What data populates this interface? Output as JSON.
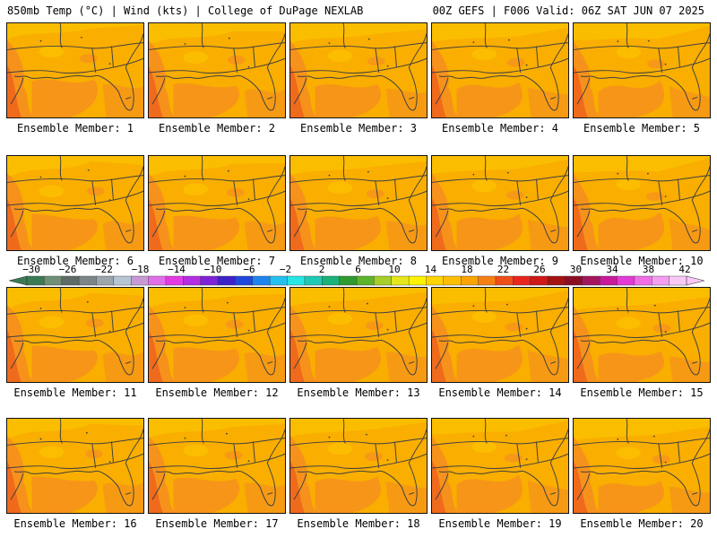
{
  "header": {
    "left_title": "850mb Temp (°C) | Wind (kts) | College of DuPage NEXLAB",
    "right_title": "00Z GEFS | F006 Valid: 06Z SAT JUN 07 2025"
  },
  "panels": [
    {
      "label": "Ensemble Member: 1"
    },
    {
      "label": "Ensemble Member: 2"
    },
    {
      "label": "Ensemble Member: 3"
    },
    {
      "label": "Ensemble Member: 4"
    },
    {
      "label": "Ensemble Member: 5"
    },
    {
      "label": "Ensemble Member: 6"
    },
    {
      "label": "Ensemble Member: 7"
    },
    {
      "label": "Ensemble Member: 8"
    },
    {
      "label": "Ensemble Member: 9"
    },
    {
      "label": "Ensemble Member: 10"
    },
    {
      "label": "Ensemble Member: 11"
    },
    {
      "label": "Ensemble Member: 12"
    },
    {
      "label": "Ensemble Member: 13"
    },
    {
      "label": "Ensemble Member: 14"
    },
    {
      "label": "Ensemble Member: 15"
    },
    {
      "label": "Ensemble Member: 16"
    },
    {
      "label": "Ensemble Member: 17"
    },
    {
      "label": "Ensemble Member: 18"
    },
    {
      "label": "Ensemble Member: 19"
    },
    {
      "label": "Ensemble Member: 20"
    }
  ],
  "colorbar": {
    "tick_labels": [
      "-30",
      "-26",
      "-22",
      "-18",
      "-14",
      "-10",
      "-6",
      "-2",
      "2",
      "6",
      "10",
      "14",
      "18",
      "22",
      "26",
      "30",
      "34",
      "38",
      "42"
    ],
    "colors": [
      "#3b7a55",
      "#6f8f76",
      "#5e6a66",
      "#7c8588",
      "#9ba6ad",
      "#b6c5d4",
      "#c79ad6",
      "#e26ee8",
      "#e33ae6",
      "#b32ee2",
      "#7d22d8",
      "#3d22c8",
      "#2148dc",
      "#1f84ee",
      "#24c1f0",
      "#29e6e6",
      "#1fc9b4",
      "#19b27a",
      "#2f9a2f",
      "#5db32a",
      "#a6cf2b",
      "#e6e61c",
      "#fff200",
      "#ffd400",
      "#fcbf00",
      "#fba400",
      "#f77f12",
      "#f04e19",
      "#e8261d",
      "#cf1818",
      "#a41212",
      "#8a0f26",
      "#a41560",
      "#c81a9a",
      "#e43ad6",
      "#f06de6",
      "#f59ef0",
      "#f8c8f6"
    ]
  },
  "map_colors": {
    "base": "#f9ae00",
    "warm": "#f6921b",
    "hot": "#f06a1c",
    "cool": "#fcc000",
    "line": "#404040"
  }
}
